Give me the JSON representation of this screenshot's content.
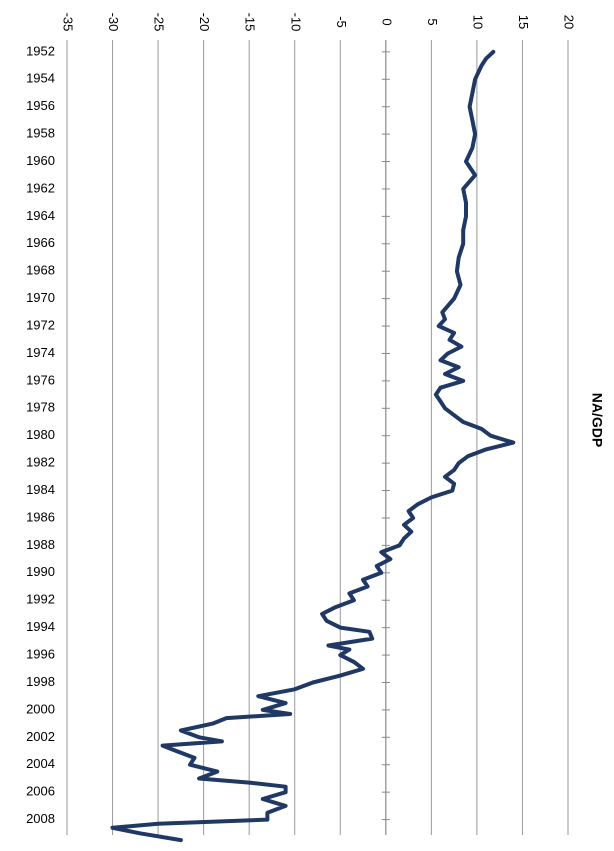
{
  "chart_data": {
    "type": "line",
    "title": "NA/GDP",
    "x": [
      1952,
      1952.5,
      1953,
      1954,
      1955,
      1956,
      1957,
      1958,
      1959,
      1960,
      1961,
      1962,
      1963,
      1964,
      1965,
      1966,
      1967,
      1968,
      1969,
      1970,
      1971,
      1971.5,
      1972,
      1972.5,
      1973,
      1973.5,
      1974,
      1974.5,
      1975,
      1975.5,
      1976,
      1976.5,
      1977,
      1977.5,
      1978,
      1978.5,
      1979,
      1979.5,
      1980,
      1980.5,
      1981,
      1981.5,
      1982,
      1982.5,
      1983,
      1983.5,
      1984,
      1984.5,
      1985,
      1985.5,
      1986,
      1986.5,
      1987,
      1987.5,
      1988,
      1988.5,
      1989,
      1989.5,
      1990,
      1990.5,
      1991,
      1991.5,
      1992,
      1992.5,
      1993,
      1993.5,
      1994,
      1994.3,
      1994.8,
      1995.3,
      1995.6,
      1996,
      1996.5,
      1997,
      1997.5,
      1998,
      1998.5,
      1999,
      1999.5,
      2000,
      2000.3,
      2000.6,
      2001,
      2001.5,
      2002,
      2002.3,
      2002.6,
      2003,
      2003.5,
      2004,
      2004.5,
      2005,
      2005.3,
      2005.6,
      2006,
      2006.5,
      2007,
      2007.5,
      2008,
      2008.3,
      2008.6,
      2009,
      2009.5
    ],
    "values": [
      11.8,
      11,
      10.5,
      9.8,
      9.5,
      9.2,
      9.5,
      9.8,
      9.5,
      8.8,
      9.8,
      8.5,
      8.8,
      8.8,
      8.5,
      8.5,
      8,
      7.8,
      8.2,
      7.5,
      6.2,
      6.5,
      5.8,
      7.5,
      7,
      8.3,
      6.8,
      6,
      8,
      6.5,
      8.5,
      6,
      5.5,
      6,
      6.5,
      7.5,
      8.5,
      10.5,
      11.5,
      14,
      11,
      9,
      8,
      7.5,
      6.5,
      7.5,
      7.3,
      5,
      3.5,
      2.5,
      3,
      2,
      2.8,
      2,
      1.5,
      -0.5,
      0.5,
      -1,
      -0.5,
      -2.5,
      -2,
      -4,
      -3.5,
      -5.5,
      -7,
      -6.5,
      -5,
      -1.8,
      -1.5,
      -6.3,
      -4,
      -5,
      -3.5,
      -2.5,
      -5,
      -8,
      -10,
      -14,
      -11,
      -13.5,
      -10.5,
      -17.5,
      -19,
      -22.5,
      -20.5,
      -18,
      -24.5,
      -23,
      -21,
      -21.5,
      -18.5,
      -20.5,
      -15,
      -11,
      -11,
      -13.5,
      -11,
      -13,
      -13,
      -25,
      -30,
      -27,
      -22.5
    ],
    "color": "#1f3864",
    "xlim": [
      1951.5,
      2010
    ],
    "xticks": [
      1952,
      1954,
      1956,
      1958,
      1960,
      1962,
      1964,
      1966,
      1968,
      1970,
      1972,
      1974,
      1976,
      1978,
      1980,
      1982,
      1984,
      1986,
      1988,
      1990,
      1992,
      1994,
      1996,
      1998,
      2000,
      2002,
      2004,
      2006,
      2008
    ],
    "ylim": [
      -35,
      20
    ],
    "yticks": [
      -35,
      -30,
      -25,
      -20,
      -15,
      -10,
      -5,
      0,
      5,
      10,
      15,
      20
    ],
    "grid": true
  }
}
